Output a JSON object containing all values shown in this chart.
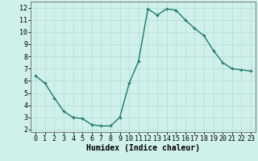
{
  "x": [
    0,
    1,
    2,
    3,
    4,
    5,
    6,
    7,
    8,
    9,
    10,
    11,
    12,
    13,
    14,
    15,
    16,
    17,
    18,
    19,
    20,
    21,
    22,
    23
  ],
  "y": [
    6.4,
    5.8,
    4.6,
    3.5,
    3.0,
    2.9,
    2.4,
    2.3,
    2.3,
    3.0,
    5.8,
    7.6,
    11.9,
    11.4,
    11.9,
    11.8,
    11.0,
    10.3,
    9.7,
    8.5,
    7.5,
    7.0,
    6.9,
    6.8
  ],
  "line_color": "#1a7a6e",
  "marker": "+",
  "marker_size": 3.5,
  "line_width": 1.0,
  "bg_color": "#cff0eb",
  "grid_color": "#b8e0da",
  "xlabel": "Humidex (Indice chaleur)",
  "xlabel_fontsize": 7,
  "tick_fontsize": 6,
  "xlim": [
    -0.5,
    23.5
  ],
  "ylim": [
    1.8,
    12.5
  ],
  "yticks": [
    2,
    3,
    4,
    5,
    6,
    7,
    8,
    9,
    10,
    11,
    12
  ],
  "xticks": [
    0,
    1,
    2,
    3,
    4,
    5,
    6,
    7,
    8,
    9,
    10,
    11,
    12,
    13,
    14,
    15,
    16,
    17,
    18,
    19,
    20,
    21,
    22,
    23
  ]
}
